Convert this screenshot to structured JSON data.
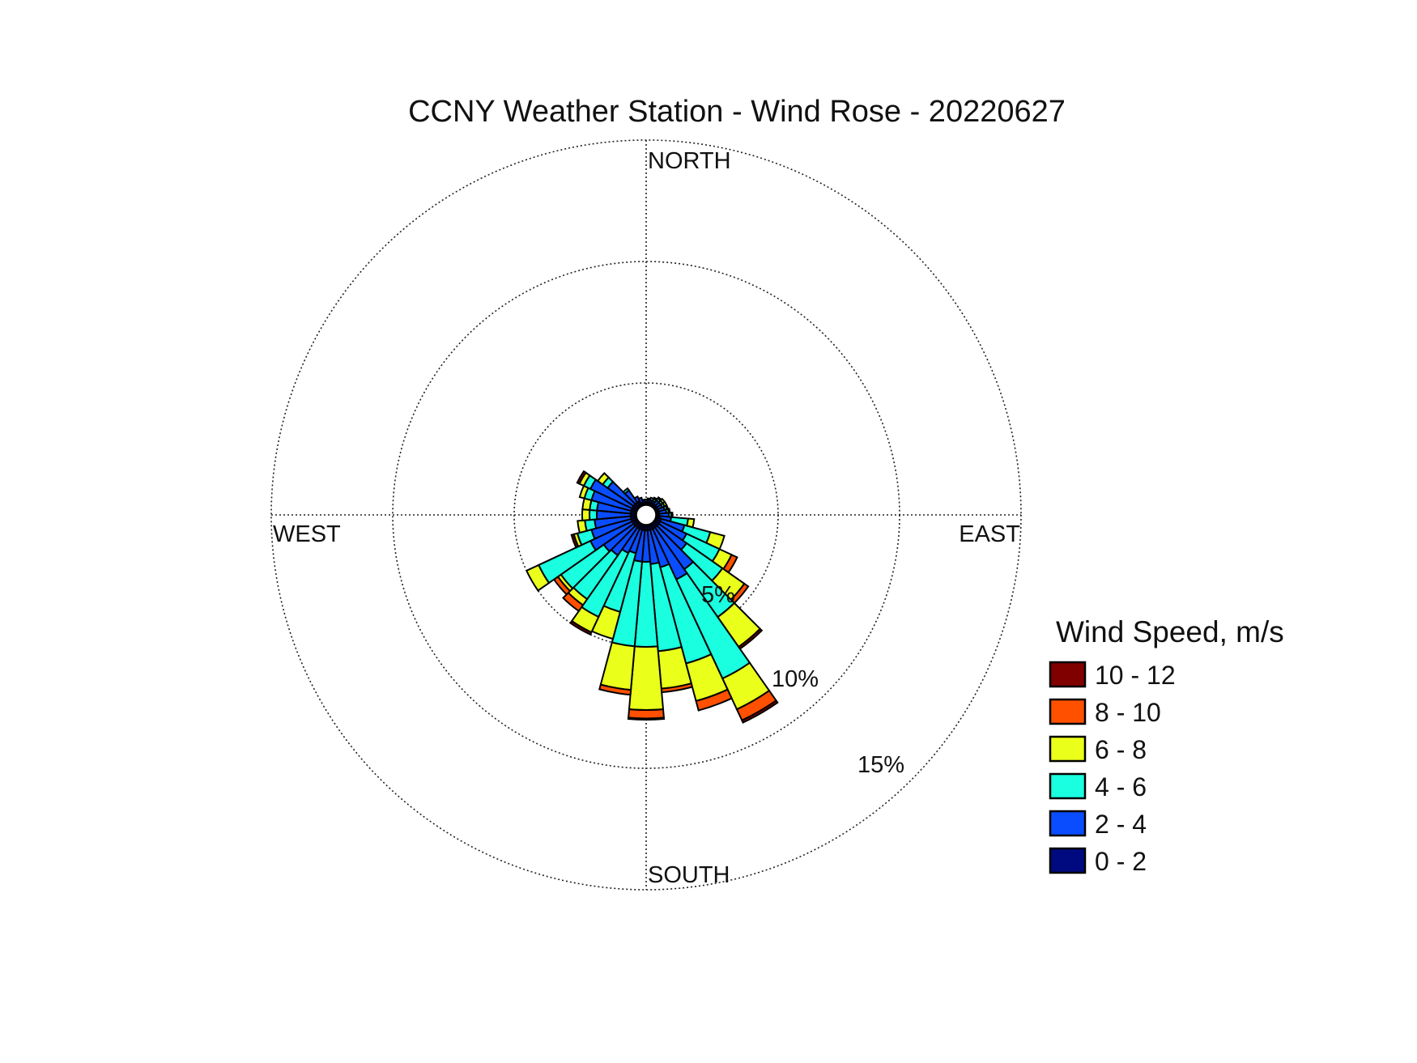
{
  "chart_data": {
    "type": "wind-rose",
    "title": "CCNY Weather Station - Wind Rose - 20220627",
    "direction_labels": {
      "north": "NORTH",
      "east": "EAST",
      "south": "SOUTH",
      "west": "WEST"
    },
    "radial_unit": "percent frequency",
    "radial_ticks": [
      "5%",
      "10%",
      "15%"
    ],
    "radial_tick_values": [
      5,
      10,
      15
    ],
    "rlim": [
      0,
      15
    ],
    "grid": true,
    "directions_deg": [
      0,
      10,
      20,
      30,
      40,
      50,
      60,
      70,
      80,
      90,
      100,
      110,
      120,
      130,
      140,
      150,
      160,
      170,
      180,
      190,
      200,
      210,
      220,
      230,
      240,
      250,
      260,
      270,
      280,
      290,
      300,
      310,
      320,
      330,
      340,
      350
    ],
    "legend": {
      "title": "Wind Speed, m/s",
      "placement": "right"
    },
    "series": [
      {
        "name": "0 - 2",
        "color": "#000a80",
        "values": [
          0.1,
          0.1,
          0.1,
          0.1,
          0.1,
          0.1,
          0.1,
          0.1,
          0.1,
          0.1,
          0.15,
          0.2,
          0.2,
          0.2,
          0.2,
          0.2,
          0.2,
          0.2,
          0.2,
          0.2,
          0.2,
          0.2,
          0.2,
          0.2,
          0.2,
          0.2,
          0.2,
          0.2,
          0.2,
          0.2,
          0.2,
          0.2,
          0.2,
          0.2,
          0.1,
          0.1
        ]
      },
      {
        "name": "2 - 4",
        "color": "#0a4dff",
        "values": [
          0.1,
          0.1,
          0.1,
          0.1,
          0.2,
          0.2,
          0.2,
          0.25,
          0.3,
          0.4,
          0.45,
          1.0,
          1.2,
          1.4,
          2.1,
          2.3,
          1.6,
          1.4,
          1.3,
          1.3,
          1.0,
          1.1,
          1.4,
          1.5,
          1.9,
          1.7,
          1.5,
          1.4,
          1.4,
          1.7,
          1.9,
          1.3,
          0.6,
          0.2,
          0.2,
          0.1
        ]
      },
      {
        "name": "4 - 6",
        "color": "#1affe0",
        "values": [
          0,
          0.05,
          0.1,
          0.1,
          0.1,
          0.1,
          0.1,
          0.1,
          0.1,
          0.1,
          0.7,
          1.1,
          1.5,
          1.8,
          2.4,
          4.5,
          4.1,
          3.6,
          3.5,
          3.5,
          2.5,
          2.9,
          2.2,
          2.15,
          2.35,
          0.6,
          0.4,
          0.3,
          0.3,
          0.3,
          0.3,
          0.25,
          0.1,
          0,
          0,
          0
        ]
      },
      {
        "name": "6 - 8",
        "color": "#eaff1a",
        "values": [
          0,
          0,
          0,
          0.05,
          0.05,
          0.1,
          0.1,
          0.05,
          0.05,
          0.05,
          0.25,
          0.6,
          0.55,
          1.1,
          1.5,
          1.4,
          1.6,
          1.55,
          2.6,
          1.8,
          1.15,
          0.7,
          0.3,
          0.15,
          0.55,
          0.15,
          0.3,
          0.3,
          0.3,
          0.2,
          0.2,
          0.25,
          0,
          0,
          0,
          0
        ]
      },
      {
        "name": "8 - 10",
        "color": "#ff5000",
        "values": [
          0,
          0,
          0,
          0,
          0,
          0,
          0,
          0,
          0,
          0,
          0,
          0,
          0.25,
          0.2,
          0,
          0.5,
          0.4,
          0.15,
          0.35,
          0.2,
          0,
          0,
          0.3,
          0.2,
          0,
          0,
          0,
          0,
          0,
          0,
          0,
          0,
          0,
          0,
          0,
          0
        ]
      },
      {
        "name": "10 - 12",
        "color": "#800000",
        "values": [
          0,
          0,
          0,
          0,
          0,
          0,
          0,
          0,
          0,
          0,
          0,
          0,
          0,
          0,
          0.1,
          0.1,
          0,
          0,
          0.05,
          0,
          0,
          0.1,
          0,
          0,
          0,
          0.1,
          0,
          0,
          0,
          0,
          0.1,
          0,
          0,
          0,
          0,
          0
        ]
      }
    ]
  }
}
